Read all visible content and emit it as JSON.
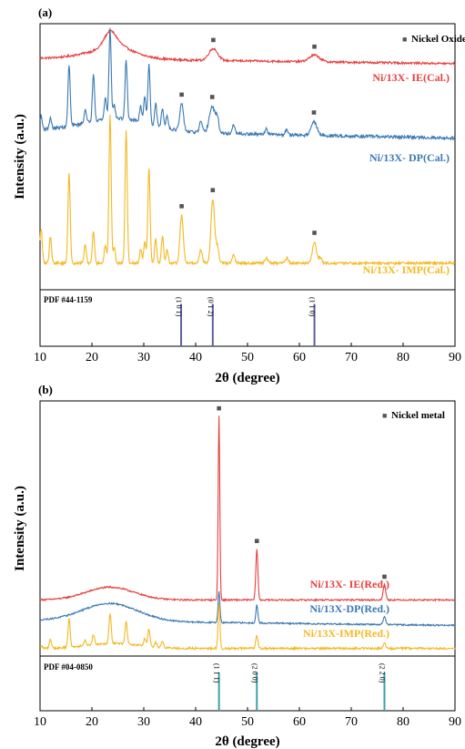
{
  "chart_data": [
    {
      "panel_label": "(a)",
      "type": "line",
      "xlabel": "2θ (degree)",
      "ylabel": "Intensity (a.u.)",
      "xlim": [
        10,
        90
      ],
      "xticks": [
        10,
        20,
        30,
        40,
        50,
        60,
        70,
        80,
        90
      ],
      "legend": {
        "label": "Nickel Oxide",
        "marker": "■",
        "position": "top-right"
      },
      "series": [
        {
          "name": "Ni/13X- IE(Cal.)",
          "color": "#e5403f",
          "baseline": 0.87,
          "noise": 0.004,
          "peaks": [
            [
              23.5,
              0.055,
              1.6
            ],
            [
              25.0,
              0.02,
              3.0
            ],
            [
              43.4,
              0.045,
              1.2
            ],
            [
              62.9,
              0.025,
              1.4
            ]
          ],
          "hump": [
            [
              23.5,
              0.035,
              7.0
            ]
          ],
          "drift": -0.02,
          "markers": [
            43.4,
            62.9
          ]
        },
        {
          "name": "Ni/13X- DP(Cal.)",
          "color": "#3b78b4",
          "baseline": 0.6,
          "noise": 0.006,
          "peaks": [
            [
              10.2,
              0.05,
              0.3
            ],
            [
              12.0,
              0.04,
              0.3
            ],
            [
              15.6,
              0.23,
              0.3
            ],
            [
              18.7,
              0.05,
              0.3
            ],
            [
              20.3,
              0.18,
              0.3
            ],
            [
              22.6,
              0.08,
              0.3
            ],
            [
              23.5,
              0.34,
              0.3
            ],
            [
              24.3,
              0.05,
              0.3
            ],
            [
              26.6,
              0.22,
              0.3
            ],
            [
              29.4,
              0.06,
              0.3
            ],
            [
              30.2,
              0.1,
              0.3
            ],
            [
              31.0,
              0.22,
              0.3
            ],
            [
              32.3,
              0.08,
              0.3
            ],
            [
              33.6,
              0.07,
              0.3
            ],
            [
              34.5,
              0.05,
              0.3
            ],
            [
              37.3,
              0.1,
              0.5
            ],
            [
              41.0,
              0.04,
              0.4
            ],
            [
              43.2,
              0.1,
              0.8
            ],
            [
              44.2,
              0.05,
              0.4
            ],
            [
              47.3,
              0.03,
              0.4
            ],
            [
              53.6,
              0.02,
              0.4
            ],
            [
              57.6,
              0.02,
              0.4
            ],
            [
              62.8,
              0.05,
              0.8
            ]
          ],
          "hump": [
            [
              25,
              0.05,
              9
            ]
          ],
          "drift": -0.03,
          "markers": [
            37.3,
            43.2,
            62.8
          ]
        },
        {
          "name": "Ni/13X- IMP(Cal.)",
          "color": "#f4b822",
          "baseline": 0.1,
          "noise": 0.005,
          "peaks": [
            [
              10.2,
              0.13,
              0.3
            ],
            [
              12.0,
              0.1,
              0.3
            ],
            [
              15.6,
              0.34,
              0.3
            ],
            [
              18.7,
              0.07,
              0.3
            ],
            [
              20.3,
              0.12,
              0.3
            ],
            [
              22.6,
              0.07,
              0.3
            ],
            [
              23.5,
              0.56,
              0.3
            ],
            [
              24.3,
              0.06,
              0.3
            ],
            [
              26.6,
              0.5,
              0.3
            ],
            [
              29.4,
              0.05,
              0.3
            ],
            [
              30.2,
              0.08,
              0.3
            ],
            [
              31.0,
              0.36,
              0.3
            ],
            [
              32.3,
              0.09,
              0.3
            ],
            [
              33.6,
              0.1,
              0.3
            ],
            [
              34.5,
              0.05,
              0.3
            ],
            [
              37.3,
              0.18,
              0.45
            ],
            [
              41.0,
              0.05,
              0.4
            ],
            [
              43.3,
              0.24,
              0.5
            ],
            [
              44.2,
              0.06,
              0.4
            ],
            [
              47.3,
              0.03,
              0.4
            ],
            [
              53.6,
              0.02,
              0.4
            ],
            [
              57.6,
              0.02,
              0.4
            ],
            [
              62.9,
              0.08,
              0.55
            ],
            [
              64.0,
              0.02,
              0.4
            ]
          ],
          "hump": [],
          "drift": 0,
          "markers": [
            37.3,
            43.3,
            62.9
          ]
        }
      ],
      "reference": {
        "label": "PDF #44-1159",
        "color": "#5b5f9e",
        "lines": [
          {
            "x": 37.2,
            "hkl": "(1 0 1)",
            "h": 0.75
          },
          {
            "x": 43.3,
            "hkl": "(0 1 2)",
            "h": 0.75
          },
          {
            "x": 62.9,
            "hkl": "(1 1 0)",
            "h": 0.75
          }
        ]
      }
    },
    {
      "panel_label": "(b)",
      "type": "line",
      "xlabel": "2θ (degree)",
      "ylabel": "Intensity (a.u.)",
      "xlim": [
        10,
        90
      ],
      "xticks": [
        10,
        20,
        30,
        40,
        50,
        60,
        70,
        80,
        90
      ],
      "legend": {
        "label": "Nickel metal",
        "marker": "■",
        "position": "top-right"
      },
      "series": [
        {
          "name": "Ni/13X- IE(Red.)",
          "color": "#e5403f",
          "baseline": 0.22,
          "noise": 0.003,
          "peaks": [
            [
              44.5,
              0.72,
              0.22
            ],
            [
              51.8,
              0.2,
              0.28
            ],
            [
              76.4,
              0.06,
              0.35
            ]
          ],
          "hump": [
            [
              23.5,
              0.05,
              6.5
            ]
          ],
          "drift": 0,
          "markers": [
            44.5,
            51.8,
            76.4
          ]
        },
        {
          "name": "Ni/13X-DP(Red.)",
          "color": "#3b78b4",
          "baseline": 0.14,
          "noise": 0.003,
          "peaks": [
            [
              44.5,
              0.12,
              0.25
            ],
            [
              51.8,
              0.07,
              0.28
            ],
            [
              76.4,
              0.03,
              0.35
            ]
          ],
          "hump": [
            [
              23.5,
              0.07,
              7.5
            ]
          ],
          "drift": -0.02,
          "markers": []
        },
        {
          "name": "Ni/13X-IMP(Red.)",
          "color": "#f4b822",
          "baseline": 0.03,
          "noise": 0.004,
          "peaks": [
            [
              10.2,
              0.01,
              0.3
            ],
            [
              12.0,
              0.035,
              0.3
            ],
            [
              15.6,
              0.11,
              0.3
            ],
            [
              18.7,
              0.02,
              0.3
            ],
            [
              20.3,
              0.04,
              0.3
            ],
            [
              23.5,
              0.12,
              0.3
            ],
            [
              26.6,
              0.09,
              0.3
            ],
            [
              30.2,
              0.03,
              0.3
            ],
            [
              31.0,
              0.07,
              0.3
            ],
            [
              32.3,
              0.02,
              0.3
            ],
            [
              33.6,
              0.025,
              0.3
            ],
            [
              44.5,
              0.18,
              0.25
            ],
            [
              51.8,
              0.05,
              0.28
            ],
            [
              76.4,
              0.02,
              0.35
            ]
          ],
          "hump": [
            [
              24,
              0.02,
              7
            ]
          ],
          "drift": 0,
          "markers": []
        }
      ],
      "reference": {
        "label": "PDF #04-0850",
        "color": "#3aa3a8",
        "lines": [
          {
            "x": 44.5,
            "hkl": "(1 1 1)",
            "h": 0.7
          },
          {
            "x": 51.8,
            "hkl": "(2 0 0)",
            "h": 0.7
          },
          {
            "x": 76.4,
            "hkl": "(2 2 0)",
            "h": 0.7
          }
        ]
      }
    }
  ]
}
